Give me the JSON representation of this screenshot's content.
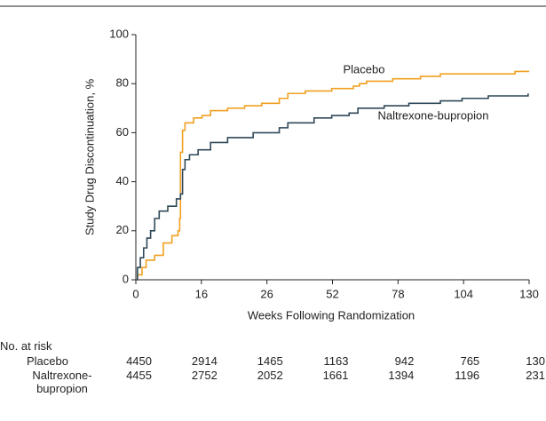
{
  "chart_data": {
    "type": "step",
    "y_label": "Study Drug Discontinuation, %",
    "x_label": "Weeks Following Randomization",
    "xlim": [
      0,
      130
    ],
    "xticks": [
      0,
      16,
      26,
      52,
      78,
      104,
      130
    ],
    "ylim": [
      0,
      100
    ],
    "yticks": [
      0,
      20,
      40,
      60,
      80,
      100
    ],
    "series": [
      {
        "name": "Placebo",
        "color": "#f0a020",
        "x": [
          0,
          0.4,
          1.5,
          2.5,
          4.6,
          6.7,
          8.8,
          10.3,
          10.7,
          10.9,
          11.4,
          12,
          14.1,
          16.1,
          17.4,
          20,
          22.6,
          25.2,
          30.9,
          34.3,
          41.2,
          51.7,
          60.3,
          62.7,
          65.5,
          75.9,
          86.9,
          94.8,
          106.8,
          124.4,
          130
        ],
        "values": [
          0,
          2,
          5,
          8,
          10,
          15,
          18,
          20,
          25,
          52,
          61,
          64,
          66,
          67,
          69,
          70,
          71,
          72,
          74,
          76,
          77,
          78,
          79,
          80,
          81,
          82,
          83,
          84,
          84,
          85,
          85
        ]
      },
      {
        "name": "Naltrexone-bupropion",
        "color": "#2f4858",
        "x": [
          0,
          0.4,
          1.1,
          1.9,
          2.7,
          3.6,
          4.6,
          5.7,
          7.8,
          9.9,
          10.9,
          11.4,
          12,
          13.1,
          15.2,
          17.4,
          20,
          23.9,
          30.9,
          34.3,
          44.7,
          51.7,
          58.6,
          62.1,
          72.5,
          82.3,
          94.8,
          103.4,
          113.8,
          129.6
        ],
        "values": [
          0,
          5,
          9,
          13,
          17,
          20,
          25,
          28,
          30,
          33,
          35,
          45,
          49,
          51,
          53,
          56,
          58,
          60,
          62,
          64,
          66,
          67,
          68,
          70,
          71,
          72,
          73,
          74,
          75,
          76
        ]
      }
    ]
  },
  "risk_table": {
    "title": "No. at risk",
    "rows": [
      {
        "label": "Placebo",
        "values": [
          4450,
          2914,
          1465,
          1163,
          942,
          765,
          130
        ]
      },
      {
        "label": "Naltrexone-bupropion",
        "values": [
          4455,
          2752,
          2052,
          1661,
          1394,
          1196,
          231
        ]
      }
    ]
  }
}
